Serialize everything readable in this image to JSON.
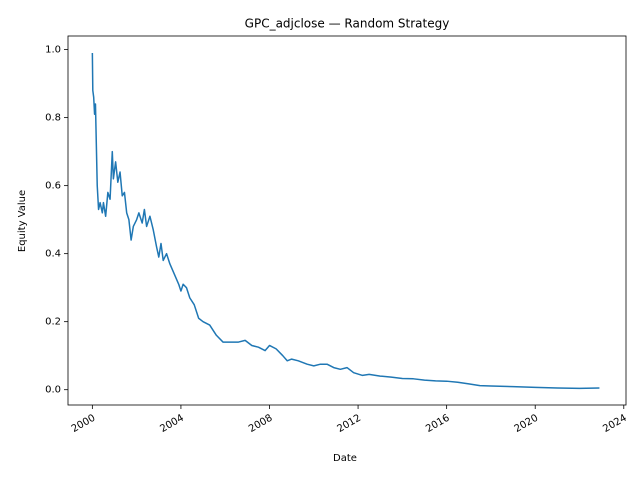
{
  "chart_data": {
    "type": "line",
    "title": "GPC_adjclose — Random Strategy",
    "xlabel": "Date",
    "ylabel": "Equity Value",
    "color": "#1f77b4",
    "x": [
      2000.0,
      2000.02,
      2000.06,
      2000.1,
      2000.14,
      2000.18,
      2000.22,
      2000.28,
      2000.35,
      2000.45,
      2000.5,
      2000.6,
      2000.7,
      2000.8,
      2000.9,
      2000.95,
      2001.05,
      2001.15,
      2001.25,
      2001.35,
      2001.45,
      2001.55,
      2001.65,
      2001.75,
      2001.85,
      2002.0,
      2002.1,
      2002.25,
      2002.35,
      2002.45,
      2002.6,
      2002.75,
      2002.9,
      2003.0,
      2003.1,
      2003.2,
      2003.35,
      2003.5,
      2003.7,
      2003.9,
      2004.0,
      2004.1,
      2004.25,
      2004.4,
      2004.6,
      2004.8,
      2005.0,
      2005.3,
      2005.6,
      2005.9,
      2006.2,
      2006.6,
      2006.9,
      2007.2,
      2007.5,
      2007.8,
      2008.0,
      2008.3,
      2008.6,
      2008.8,
      2009.0,
      2009.3,
      2009.7,
      2010.0,
      2010.3,
      2010.6,
      2010.9,
      2011.2,
      2011.5,
      2011.8,
      2012.2,
      2012.5,
      2013.0,
      2013.5,
      2014.0,
      2014.5,
      2015.0,
      2015.5,
      2016.0,
      2016.5,
      2017.0,
      2017.5,
      2018.0,
      2019.0,
      2020.0,
      2021.0,
      2022.0,
      2022.9
    ],
    "values": [
      0.99,
      0.88,
      0.86,
      0.81,
      0.84,
      0.72,
      0.6,
      0.53,
      0.55,
      0.52,
      0.55,
      0.51,
      0.58,
      0.56,
      0.7,
      0.62,
      0.67,
      0.61,
      0.64,
      0.57,
      0.58,
      0.52,
      0.5,
      0.44,
      0.48,
      0.5,
      0.52,
      0.49,
      0.53,
      0.48,
      0.51,
      0.47,
      0.42,
      0.39,
      0.43,
      0.38,
      0.4,
      0.37,
      0.34,
      0.31,
      0.29,
      0.31,
      0.3,
      0.27,
      0.25,
      0.21,
      0.2,
      0.19,
      0.16,
      0.14,
      0.14,
      0.14,
      0.145,
      0.13,
      0.125,
      0.115,
      0.13,
      0.12,
      0.1,
      0.085,
      0.09,
      0.085,
      0.075,
      0.07,
      0.075,
      0.075,
      0.065,
      0.06,
      0.065,
      0.05,
      0.042,
      0.045,
      0.04,
      0.037,
      0.033,
      0.032,
      0.028,
      0.026,
      0.025,
      0.022,
      0.017,
      0.012,
      0.011,
      0.009,
      0.007,
      0.005,
      0.004,
      0.005
    ],
    "xlim": [
      1998.9,
      2024.1
    ],
    "xticks": [
      2000,
      2004,
      2008,
      2012,
      2016,
      2020,
      2024
    ],
    "ylim": [
      -0.045,
      1.04
    ],
    "yticks": [
      {
        "value": 0,
        "label": "0.0"
      },
      0.2,
      0.4,
      0.6,
      0.8,
      {
        "value": 1,
        "label": "1.0"
      }
    ]
  }
}
